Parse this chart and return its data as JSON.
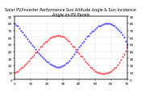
{
  "title": "Solar PV/Inverter Performance Sun Altitude Angle & Sun Incidence Angle on PV Panels",
  "bg_color": "#ffffff",
  "grid_color": "#b0b0b0",
  "blue_color": "#0000dd",
  "red_color": "#dd0000",
  "x_values": [
    0,
    1,
    2,
    3,
    4,
    5,
    6,
    7,
    8,
    9,
    10,
    11,
    12,
    13,
    14,
    15,
    16,
    17,
    18,
    19,
    20,
    21,
    22,
    23,
    24,
    25,
    26,
    27,
    28,
    29,
    30,
    31,
    32,
    33,
    34,
    35,
    36,
    37,
    38,
    39,
    40,
    41,
    42,
    43,
    44,
    45,
    46,
    47,
    48,
    49,
    50,
    51,
    52,
    53,
    54,
    55,
    56,
    57,
    58,
    59,
    60,
    61,
    62,
    63,
    64,
    65,
    66,
    67,
    68,
    69,
    70
  ],
  "altitude_y": [
    80,
    78,
    76,
    73,
    70,
    67,
    64,
    61,
    58,
    55,
    52,
    49,
    46,
    43,
    40,
    37,
    35,
    32,
    30,
    28,
    26,
    24,
    22,
    21,
    20,
    19,
    18,
    18,
    18,
    19,
    20,
    21,
    23,
    25,
    27,
    30,
    33,
    36,
    39,
    43,
    46,
    49,
    52,
    55,
    58,
    61,
    63,
    66,
    68,
    70,
    72,
    74,
    76,
    77,
    78,
    79,
    80,
    80,
    80,
    80,
    79,
    78,
    76,
    74,
    72,
    70,
    67,
    64,
    60,
    55,
    50
  ],
  "incidence_y": [
    10,
    11,
    12,
    14,
    16,
    18,
    20,
    22,
    25,
    27,
    30,
    32,
    35,
    38,
    40,
    43,
    46,
    48,
    51,
    53,
    55,
    57,
    59,
    60,
    61,
    62,
    63,
    63,
    63,
    62,
    61,
    60,
    58,
    56,
    54,
    51,
    48,
    46,
    43,
    40,
    37,
    34,
    32,
    29,
    26,
    23,
    21,
    18,
    16,
    14,
    12,
    11,
    10,
    9,
    8,
    8,
    8,
    9,
    10,
    11,
    12,
    14,
    16,
    18,
    21,
    24,
    28,
    32,
    36,
    41,
    47
  ],
  "ylim": [
    0,
    90
  ],
  "yticks": [
    0,
    10,
    20,
    30,
    40,
    50,
    60,
    70,
    80,
    90
  ],
  "xlim": [
    0,
    70
  ],
  "xtick_count": 8,
  "title_fontsize": 3.5,
  "tick_fontsize": 3.0,
  "marker_size": 0.8
}
